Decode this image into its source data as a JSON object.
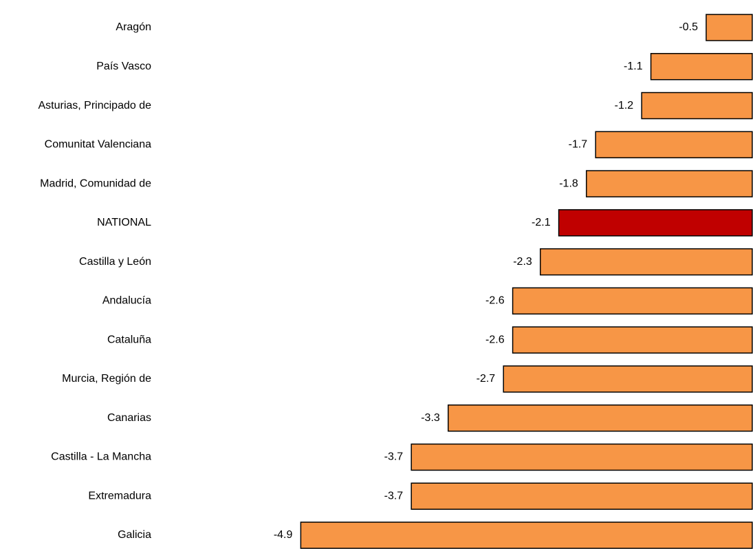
{
  "chart_data": {
    "type": "bar",
    "orientation": "horizontal",
    "categories": [
      "Aragón",
      "País Vasco",
      "Asturias, Principado de",
      "Comunitat Valenciana",
      "Madrid, Comunidad de",
      "NATIONAL",
      "Castilla y León",
      "Andalucía",
      "Cataluña",
      "Murcia, Región de",
      "Canarias",
      "Castilla - La Mancha",
      "Extremadura",
      "Galicia"
    ],
    "values": [
      -0.5,
      -1.1,
      -1.2,
      -1.7,
      -1.8,
      -2.1,
      -2.3,
      -2.6,
      -2.6,
      -2.7,
      -3.3,
      -3.7,
      -3.7,
      -4.9
    ],
    "colors": [
      "#f79646",
      "#f79646",
      "#f79646",
      "#f79646",
      "#f79646",
      "#c00000",
      "#f79646",
      "#f79646",
      "#f79646",
      "#f79646",
      "#f79646",
      "#f79646",
      "#f79646",
      "#f79646"
    ],
    "xlim": [
      -5,
      0
    ]
  }
}
